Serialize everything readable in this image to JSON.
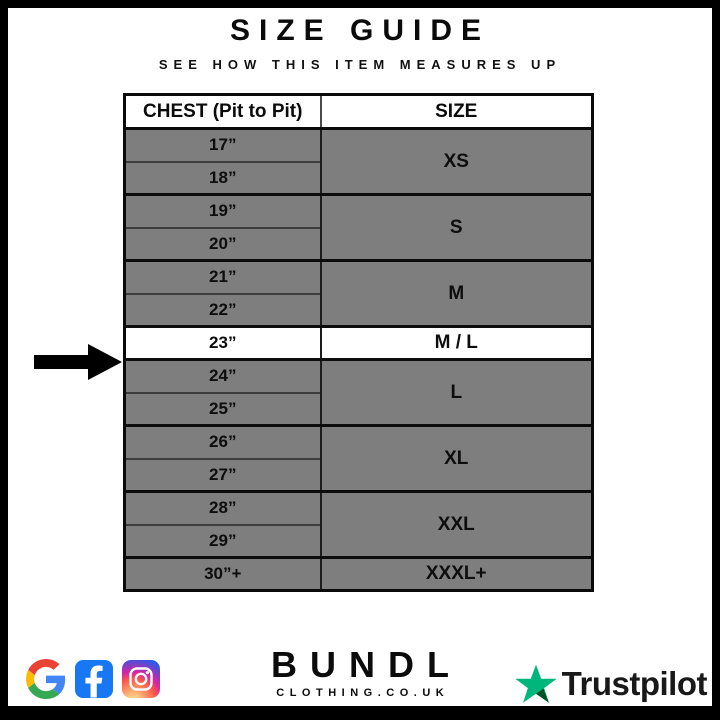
{
  "header": {
    "title": "SIZE GUIDE",
    "subtitle": "SEE HOW THIS ITEM MEASURES UP"
  },
  "table": {
    "columns": [
      "CHEST (Pit to Pit)",
      "SIZE"
    ],
    "groups": [
      {
        "size": "XS",
        "measurements": [
          "17”",
          "18”"
        ],
        "highlighted": false
      },
      {
        "size": "S",
        "measurements": [
          "19”",
          "20”"
        ],
        "highlighted": false
      },
      {
        "size": "M",
        "measurements": [
          "21”",
          "22”"
        ],
        "highlighted": false
      },
      {
        "size": "M / L",
        "measurements": [
          "23”"
        ],
        "highlighted": true
      },
      {
        "size": "L",
        "measurements": [
          "24”",
          "25”"
        ],
        "highlighted": false
      },
      {
        "size": "XL",
        "measurements": [
          "26”",
          "27”"
        ],
        "highlighted": false
      },
      {
        "size": "XXL",
        "measurements": [
          "28”",
          "29”"
        ],
        "highlighted": false
      },
      {
        "size": "XXXL+",
        "measurements": [
          "30”+"
        ],
        "highlighted": false
      }
    ],
    "highlighted_measurement": "23”"
  },
  "chart_data": {
    "type": "table",
    "title": "SIZE GUIDE",
    "subtitle": "SEE HOW THIS ITEM MEASURES UP",
    "columns": [
      "CHEST (Pit to Pit)",
      "SIZE"
    ],
    "rows": [
      [
        "17”",
        "XS"
      ],
      [
        "18”",
        "XS"
      ],
      [
        "19”",
        "S"
      ],
      [
        "20”",
        "S"
      ],
      [
        "21”",
        "M"
      ],
      [
        "22”",
        "M"
      ],
      [
        "23”",
        "M / L"
      ],
      [
        "24”",
        "L"
      ],
      [
        "25”",
        "L"
      ],
      [
        "26”",
        "XL"
      ],
      [
        "27”",
        "XL"
      ],
      [
        "28”",
        "XXL"
      ],
      [
        "29”",
        "XXL"
      ],
      [
        "30”+",
        "XXXL+"
      ]
    ],
    "highlighted_row": [
      "23”",
      "M / L"
    ],
    "annotations": [
      "arrow pointing at 23” / M / L row"
    ]
  },
  "footer": {
    "brand": {
      "name": "BUNDL",
      "domain": "CLOTHING.CO.UK"
    },
    "social_icons": [
      "google",
      "facebook",
      "instagram"
    ],
    "trustpilot_label": "Trustpilot"
  },
  "colors": {
    "row_gray": "#7e7e7e",
    "highlight_white": "#ffffff",
    "border_black": "#000000",
    "trustpilot_green": "#00b67a",
    "trustpilot_dark_green": "#005128",
    "facebook_blue": "#1877f2"
  }
}
